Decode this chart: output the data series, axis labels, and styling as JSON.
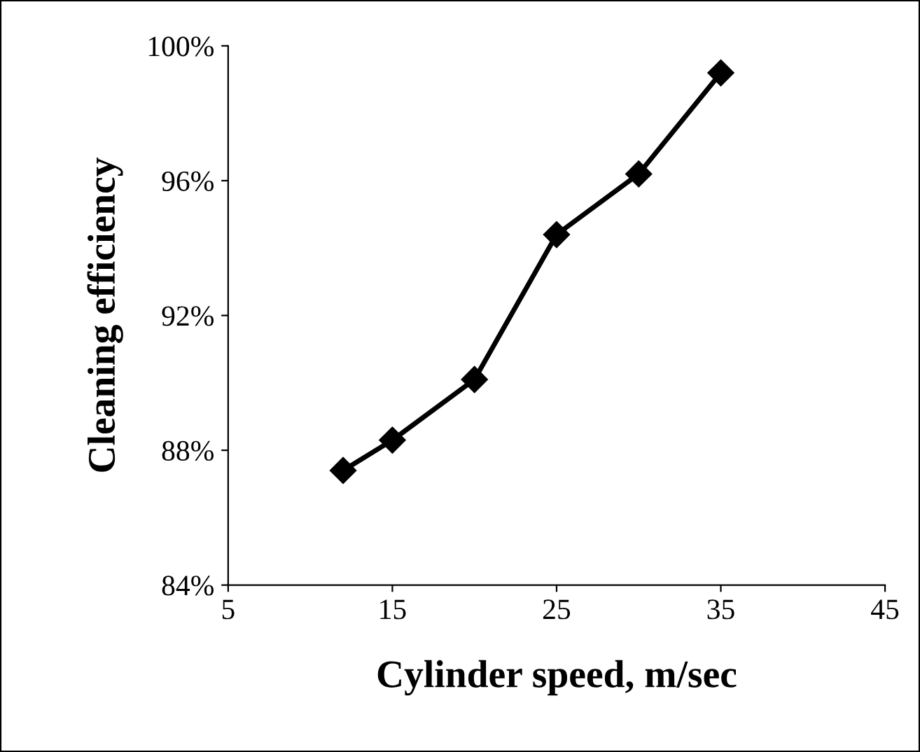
{
  "chart_data": {
    "type": "line",
    "xlabel": "Cylinder speed, m/sec",
    "ylabel": "Cleaning efficiency",
    "x": [
      12,
      15,
      20,
      25,
      30,
      35
    ],
    "series": [
      {
        "color": "#000000",
        "values": [
          87.4,
          88.3,
          90.1,
          94.4,
          96.2,
          99.2
        ]
      }
    ],
    "xlim": [
      5,
      45
    ],
    "xticks": [
      5,
      15,
      25,
      35,
      45
    ],
    "ylim": [
      84,
      100
    ],
    "yticks": [
      {
        "value": 84,
        "label": "84%"
      },
      {
        "value": 88,
        "label": "88%"
      },
      {
        "value": 92,
        "label": "92%"
      },
      {
        "value": 96,
        "label": "96%"
      },
      {
        "value": 100,
        "label": "100%"
      }
    ],
    "grid": false,
    "marker": "diamond",
    "line_style": "solid"
  }
}
